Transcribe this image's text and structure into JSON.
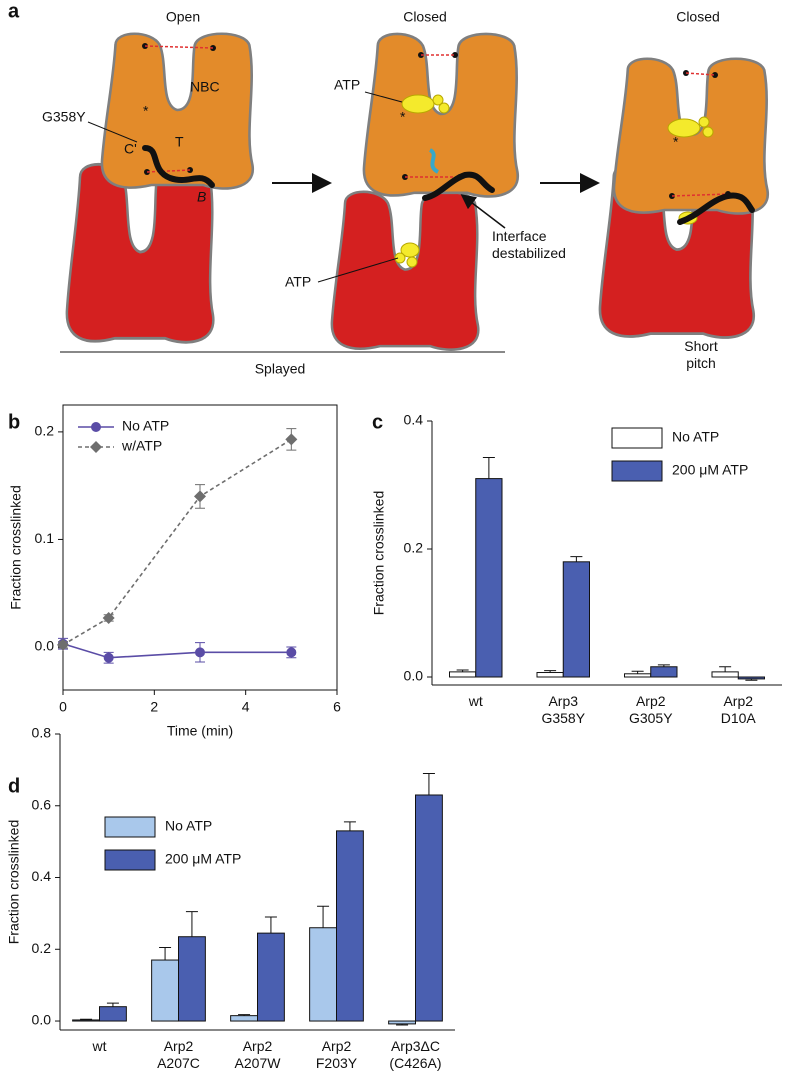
{
  "diagram": {
    "panel_label": "a",
    "states": [
      "Open",
      "Closed",
      "Closed"
    ],
    "labels": {
      "mutation": "G358Y",
      "cleft": "NBC",
      "c_term": "C'",
      "t_label": "T",
      "b_label": "B",
      "marker": "*",
      "atp": "ATP",
      "interface": "Interface\ndestabilized",
      "splayed": "Splayed",
      "short_pitch": "Short\npitch"
    }
  },
  "chart_data": [
    {
      "panel_label": "b",
      "type": "line",
      "xlabel": "Time (min)",
      "ylabel": "Fraction crosslinked",
      "x": [
        0,
        1,
        3,
        5
      ],
      "series": [
        {
          "name": "No ATP",
          "color": "#5a4ca6",
          "marker": "circle",
          "dashed": false,
          "values": [
            0.003,
            -0.01,
            -0.005,
            -0.005
          ],
          "errors": [
            0.005,
            0.005,
            0.009,
            0.005
          ]
        },
        {
          "name": "w/ATP",
          "color": "#6e6e6e",
          "marker": "diamond",
          "dashed": true,
          "values": [
            0.002,
            0.027,
            0.14,
            0.193
          ],
          "errors": [
            0.003,
            0.003,
            0.011,
            0.01
          ]
        }
      ],
      "xlim": [
        0,
        6
      ],
      "xticks": [
        0,
        2,
        4,
        6
      ],
      "ylim": [
        -0.04,
        0.225
      ],
      "yticks": [
        {
          "value": 0,
          "label": "0.0"
        },
        0.1,
        0.2
      ],
      "legend": "upper left",
      "frame": true
    },
    {
      "panel_label": "c",
      "type": "bar",
      "ylabel": "Fraction crosslinked",
      "categories": [
        "wt",
        "Arp3\nG358Y",
        "Arp2\nG305Y",
        "Arp2\nD10A"
      ],
      "series": [
        {
          "name": "No ATP",
          "color": "#ffffff",
          "values": [
            0.008,
            0.007,
            0.005,
            0.008
          ],
          "errors": [
            0.003,
            0.003,
            0.004,
            0.008
          ]
        },
        {
          "name": "200 μM ATP",
          "color": "#4a5fb0",
          "values": [
            0.31,
            0.18,
            0.016,
            -0.003
          ],
          "errors": [
            0.033,
            0.008,
            0.003,
            0.002
          ]
        }
      ],
      "ylim": [
        -0.0125,
        0.4
      ],
      "yticks": [
        {
          "value": 0,
          "label": "0.0"
        },
        0.2,
        0.4
      ],
      "legend": "upper right",
      "frame": false
    },
    {
      "panel_label": "d",
      "type": "bar",
      "ylabel": "Fraction crosslinked",
      "categories": [
        "wt",
        "Arp2\nA207C",
        "Arp2\nA207W",
        "Arp2\nF203Y",
        "Arp3ΔC\n(C426A)"
      ],
      "series": [
        {
          "name": "No ATP",
          "color": "#a9c8eb",
          "values": [
            0.003,
            0.17,
            0.015,
            0.26,
            -0.008
          ],
          "errors": [
            0.002,
            0.035,
            0.003,
            0.06,
            0.003
          ]
        },
        {
          "name": "200 μM ATP",
          "color": "#4a5fb0",
          "values": [
            0.04,
            0.235,
            0.245,
            0.53,
            0.63
          ],
          "errors": [
            0.01,
            0.07,
            0.045,
            0.025,
            0.06
          ]
        }
      ],
      "ylim": [
        -0.025,
        0.8
      ],
      "yticks": [
        {
          "value": 0,
          "label": "0.0"
        },
        0.2,
        0.4,
        0.6,
        0.8
      ],
      "legend": "upper left",
      "frame": false
    }
  ]
}
